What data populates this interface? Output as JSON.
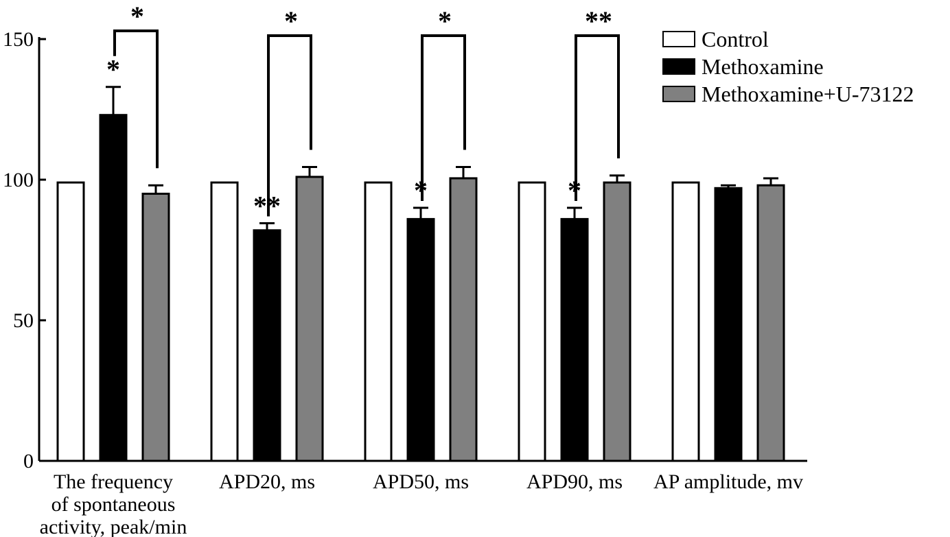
{
  "chart_data": {
    "type": "bar",
    "categories": [
      [
        "The frequency",
        "of spontaneous",
        "activity, peak/min"
      ],
      [
        "APD20, ms"
      ],
      [
        "APD50, ms"
      ],
      [
        "APD90, ms"
      ],
      [
        "AP amplitude, mv"
      ]
    ],
    "series": [
      {
        "name": "Control",
        "color": "#ffffff",
        "values": [
          99,
          99,
          99,
          99,
          99
        ],
        "errors": [
          0,
          0,
          0,
          0,
          0
        ]
      },
      {
        "name": "Methoxamine",
        "color": "#000000",
        "values": [
          123,
          82,
          86,
          86,
          97
        ],
        "errors": [
          10,
          2.5,
          4,
          4,
          1
        ]
      },
      {
        "name": "Methoxamine+U-73122",
        "color": "#808080",
        "values": [
          95,
          101,
          100.5,
          99,
          98
        ],
        "errors": [
          3,
          3.5,
          4,
          2.5,
          2.5
        ]
      }
    ],
    "ylim": [
      0,
      150
    ],
    "yticks": [
      0,
      50,
      100,
      150
    ],
    "legend_position": "top-right",
    "significance": [
      {
        "category": 0,
        "series": 1,
        "label": "*"
      },
      {
        "category": 1,
        "series": 1,
        "label": "**"
      },
      {
        "category": 2,
        "series": 1,
        "label": "*"
      },
      {
        "category": 3,
        "series": 1,
        "label": "*"
      }
    ],
    "brackets": [
      {
        "category": 0,
        "from_series": 1,
        "to_series": 2,
        "label": "*"
      },
      {
        "category": 1,
        "from_series": 1,
        "to_series": 2,
        "label": "*"
      },
      {
        "category": 2,
        "from_series": 1,
        "to_series": 2,
        "label": "*"
      },
      {
        "category": 3,
        "from_series": 1,
        "to_series": 2,
        "label": "**"
      }
    ]
  }
}
